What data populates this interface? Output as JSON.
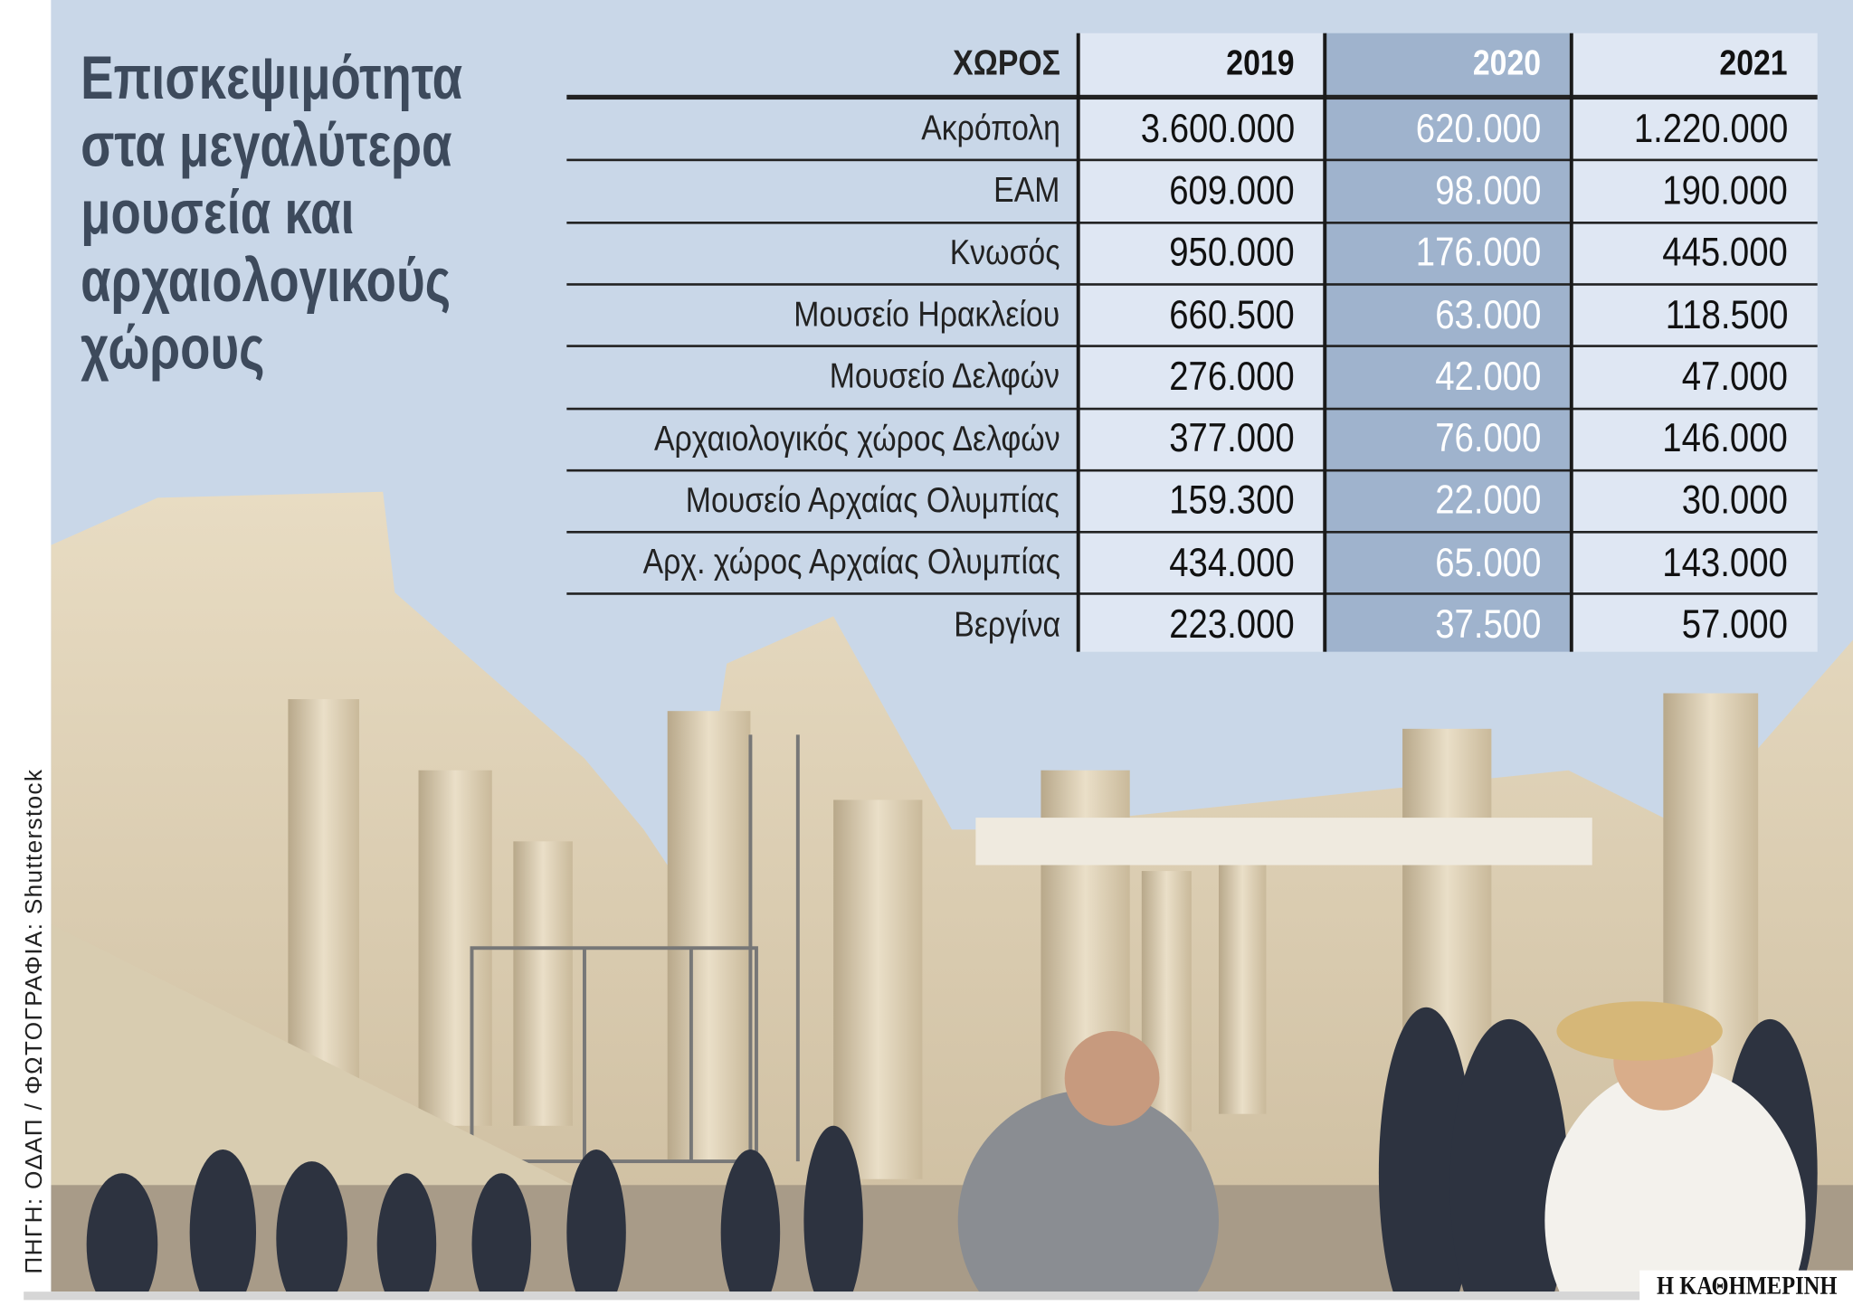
{
  "title_lines": [
    "Επισκεψιμότητα",
    "στα μεγαλύτερα",
    "μουσεία και",
    "αρχαιολογικούς",
    "χώρους"
  ],
  "table": {
    "headers": [
      "ΧΩΡΟΣ",
      "2019",
      "2020",
      "2021"
    ],
    "rows": [
      {
        "site": "Ακρόπολη",
        "y2019": "3.600.000",
        "y2020": "620.000",
        "y2021": "1.220.000"
      },
      {
        "site": "ΕΑΜ",
        "y2019": "609.000",
        "y2020": "98.000",
        "y2021": "190.000"
      },
      {
        "site": "Κνωσός",
        "y2019": "950.000",
        "y2020": "176.000",
        "y2021": "445.000"
      },
      {
        "site": "Μουσείο Ηρακλείου",
        "y2019": "660.500",
        "y2020": "63.000",
        "y2021": "118.500"
      },
      {
        "site": "Μουσείο Δελφών",
        "y2019": "276.000",
        "y2020": "42.000",
        "y2021": "47.000"
      },
      {
        "site": "Αρχαιολογικός χώρος Δελφών",
        "y2019": "377.000",
        "y2020": "76.000",
        "y2021": "146.000"
      },
      {
        "site": "Μουσείο Αρχαίας Ολυμπίας",
        "y2019": "159.300",
        "y2020": "22.000",
        "y2021": "30.000"
      },
      {
        "site": "Αρχ. χώρος Αρχαίας Ολυμπίας",
        "y2019": "434.000",
        "y2020": "65.000",
        "y2021": "143.000"
      },
      {
        "site": "Βεργίνα",
        "y2019": "223.000",
        "y2020": "37.500",
        "y2021": "57.000"
      }
    ]
  },
  "credit": "ΠΗΓΗ: ΟΔΑΠ / ΦΩΤΟΓΡΑΦΙΑ: Shutterstock",
  "logo": "Η ΚΑΘΗΜΕΡΙΝΗ",
  "colors": {
    "background": "#c9d7e8",
    "title": "#3d4a5c",
    "col_light": "#dfe7f3",
    "col_2020": "#9fb3cd"
  }
}
